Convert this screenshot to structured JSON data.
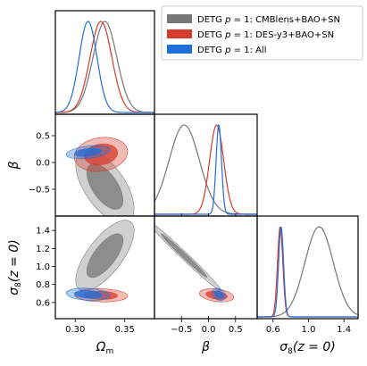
{
  "chart_data": {
    "type": "corner-triangle",
    "grid": false,
    "legend_position": "top-right",
    "parameters": [
      {
        "key": "om",
        "label": "Ω",
        "sub": "m",
        "range": [
          0.28,
          0.38
        ],
        "ticks": [
          0.3,
          0.35
        ],
        "tick_labels": [
          "0.30",
          "0.35"
        ]
      },
      {
        "key": "beta",
        "label": "β",
        "sub": "",
        "range": [
          -1.0,
          0.9
        ],
        "ticks": [
          -0.5,
          0.0,
          0.5
        ],
        "tick_labels": [
          "−0.5",
          "0.0",
          "0.5"
        ]
      },
      {
        "key": "s8",
        "label": "σ",
        "sub": "8",
        "suffix": "(z = 0)",
        "range": [
          0.42,
          1.56
        ],
        "ticks": [
          0.6,
          0.8,
          1.0,
          1.2,
          1.4
        ],
        "tick_labels": [
          "0.6",
          "0.8",
          "1.0",
          "1.2",
          "1.4"
        ],
        "diag_ticks": [
          0.6,
          1.0,
          1.4
        ],
        "diag_tick_labels": [
          "0.6",
          "1.0",
          "1.4"
        ]
      }
    ],
    "series": [
      {
        "name": "DETG p = 1: CMBlens+BAO+SN",
        "color": "#777777",
        "mean": {
          "om": 0.33,
          "beta": -0.45,
          "s8": 1.12
        },
        "sigma": {
          "om": 0.012,
          "beta": 0.28,
          "s8": 0.16
        },
        "corr": {
          "om_beta": -0.6,
          "om_s8": 0.7,
          "beta_s8": -0.99
        }
      },
      {
        "name": "DETG p = 1: DES-y3+BAO+SN",
        "color": "#d63b2b",
        "mean": {
          "om": 0.326,
          "beta": 0.15,
          "s8": 0.68
        },
        "sigma": {
          "om": 0.011,
          "beta": 0.13,
          "s8": 0.03
        },
        "corr": {
          "om_beta": 0.15,
          "om_s8": -0.1,
          "beta_s8": -0.3
        }
      },
      {
        "name": "DETG p = 1: All",
        "color": "#1f6fdb",
        "mean": {
          "om": 0.313,
          "beta": 0.19,
          "s8": 0.69
        },
        "sigma": {
          "om": 0.009,
          "beta": 0.05,
          "s8": 0.028
        },
        "corr": {
          "om_beta": 0.35,
          "om_s8": -0.2,
          "beta_s8": -0.3
        }
      }
    ]
  }
}
